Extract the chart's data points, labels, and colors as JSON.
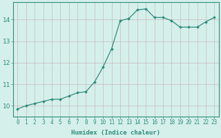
{
  "x": [
    0,
    1,
    2,
    3,
    4,
    5,
    6,
    7,
    8,
    9,
    10,
    11,
    12,
    13,
    14,
    15,
    16,
    17,
    18,
    19,
    20,
    21,
    22,
    23
  ],
  "y": [
    9.85,
    10.0,
    10.1,
    10.2,
    10.3,
    10.3,
    10.45,
    10.6,
    10.65,
    11.1,
    11.8,
    12.65,
    13.95,
    14.05,
    14.45,
    14.5,
    14.1,
    14.1,
    13.95,
    13.65,
    13.65,
    13.65,
    13.9,
    14.1
  ],
  "line_color": "#2e8b7a",
  "marker": "D",
  "marker_size": 2.0,
  "bg_color": "#d5f0eb",
  "grid_color": "#c8b8bc",
  "axis_color": "#2e8b7a",
  "tick_color": "#2e8b7a",
  "xlabel": "Humidex (Indice chaleur)",
  "xlabel_fontsize": 6.5,
  "xlabel_color": "#2e8b7a",
  "yticks": [
    10,
    11,
    12,
    13,
    14
  ],
  "xtick_labels": [
    "0",
    "1",
    "2",
    "3",
    "4",
    "5",
    "6",
    "7",
    "8",
    "9",
    "10",
    "11",
    "12",
    "13",
    "14",
    "15",
    "16",
    "17",
    "18",
    "19",
    "20",
    "21",
    "22",
    "23"
  ],
  "ylim": [
    9.5,
    14.8
  ],
  "xlim": [
    -0.5,
    23.5
  ],
  "tick_fontsize": 5.5,
  "ytick_fontsize": 6.5
}
